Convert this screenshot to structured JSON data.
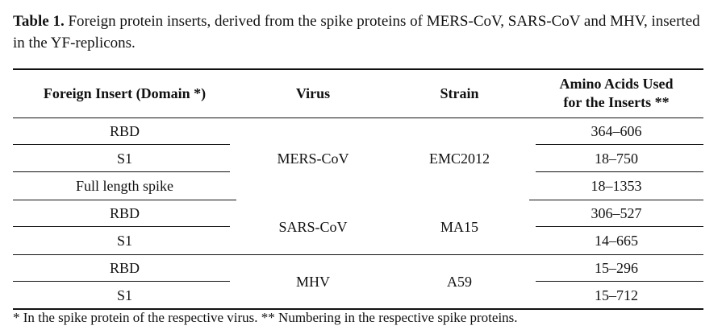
{
  "caption": {
    "label": "Table 1.",
    "text": " Foreign protein inserts, derived from the spike proteins of MERS-CoV, SARS-CoV and MHV, inserted in the YF-replicons."
  },
  "table": {
    "headers": {
      "insert": "Foreign Insert (Domain *)",
      "virus": "Virus",
      "strain": "Strain",
      "amino_line1": "Amino Acids Used",
      "amino_line2": "for the Inserts **"
    },
    "groups": [
      {
        "virus": "MERS-CoV",
        "strain": "EMC2012",
        "rows": [
          {
            "insert": "RBD",
            "amino": "364–606"
          },
          {
            "insert": "S1",
            "amino": "18–750"
          },
          {
            "insert": "Full length spike",
            "amino": "18–1353"
          }
        ]
      },
      {
        "virus": "SARS-CoV",
        "strain": "MA15",
        "rows": [
          {
            "insert": "RBD",
            "amino": "306–527"
          },
          {
            "insert": "S1",
            "amino": "14–665"
          }
        ]
      },
      {
        "virus": "MHV",
        "strain": "A59",
        "rows": [
          {
            "insert": "RBD",
            "amino": "15–296"
          },
          {
            "insert": "S1",
            "amino": "15–712"
          }
        ]
      }
    ]
  },
  "footnote": "* In the spike protein of the respective virus. ** Numbering in the respective spike proteins."
}
